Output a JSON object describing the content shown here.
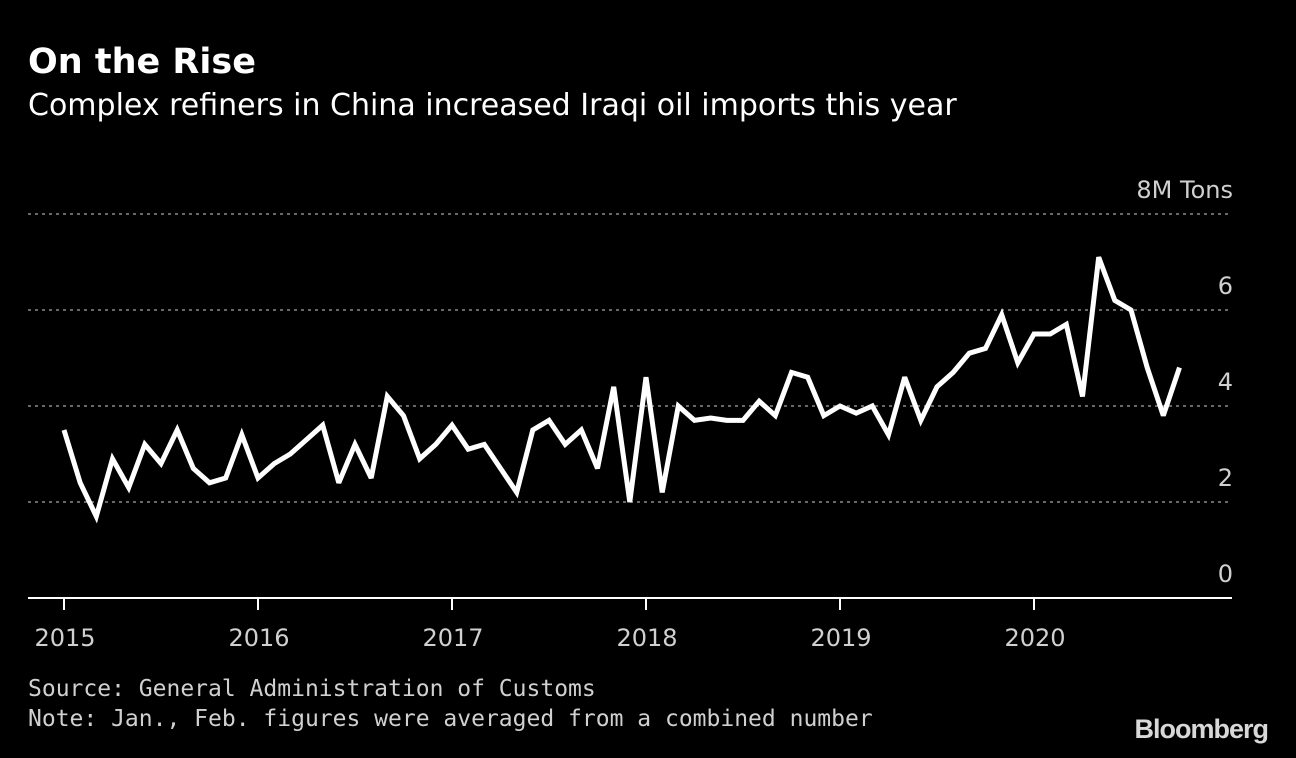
{
  "title": "On the Rise",
  "subtitle": "Complex refiners in China increased Iraqi oil imports this year",
  "source": "Source: General Administration of Customs",
  "note": "Note: Jan., Feb. figures were averaged from a combined number",
  "brand": "Bloomberg",
  "colors": {
    "background": "#000000",
    "line": "#ffffff",
    "grid": "#8a8a8a",
    "text": "#ffffff",
    "muted": "#d0d0d0"
  },
  "chart_data": {
    "type": "line",
    "title": "On the Rise",
    "subtitle": "Complex refiners in China increased Iraqi oil imports this year",
    "ylabel": "8M Tons",
    "y_unit": "M Tons",
    "ylim": [
      0,
      8
    ],
    "y_ticks": [
      {
        "value": 8,
        "label": "8M Tons"
      },
      {
        "value": 6,
        "label": "6"
      },
      {
        "value": 4,
        "label": "4"
      },
      {
        "value": 2,
        "label": "2"
      },
      {
        "value": 0,
        "label": "0"
      }
    ],
    "x_ticks": [
      "2015",
      "2016",
      "2017",
      "2018",
      "2019",
      "2020"
    ],
    "grid": true,
    "frequency": "monthly",
    "start": "2015-01",
    "series": [
      {
        "values": [
          3.5,
          2.4,
          1.7,
          2.9,
          2.3,
          3.2,
          2.8,
          3.5,
          2.7,
          2.4,
          2.5,
          3.4,
          2.5,
          2.8,
          3.0,
          3.3,
          3.6,
          2.4,
          3.2,
          2.5,
          4.2,
          3.8,
          2.9,
          3.2,
          3.6,
          3.1,
          3.2,
          2.7,
          2.2,
          3.5,
          3.7,
          3.2,
          3.5,
          2.7,
          4.4,
          2.0,
          4.6,
          2.2,
          4.0,
          3.7,
          3.75,
          3.7,
          3.7,
          4.1,
          3.8,
          4.7,
          4.6,
          3.8,
          4.0,
          3.85,
          4.0,
          3.4,
          4.6,
          3.7,
          4.4,
          4.7,
          5.1,
          5.2,
          5.9,
          4.9,
          5.5,
          5.5,
          5.7,
          4.2,
          7.1,
          6.2,
          6.0,
          4.8,
          3.8,
          4.8
        ]
      }
    ],
    "source": "Source: General Administration of Customs",
    "note": "Note: Jan., Feb. figures were averaged from a combined number"
  }
}
